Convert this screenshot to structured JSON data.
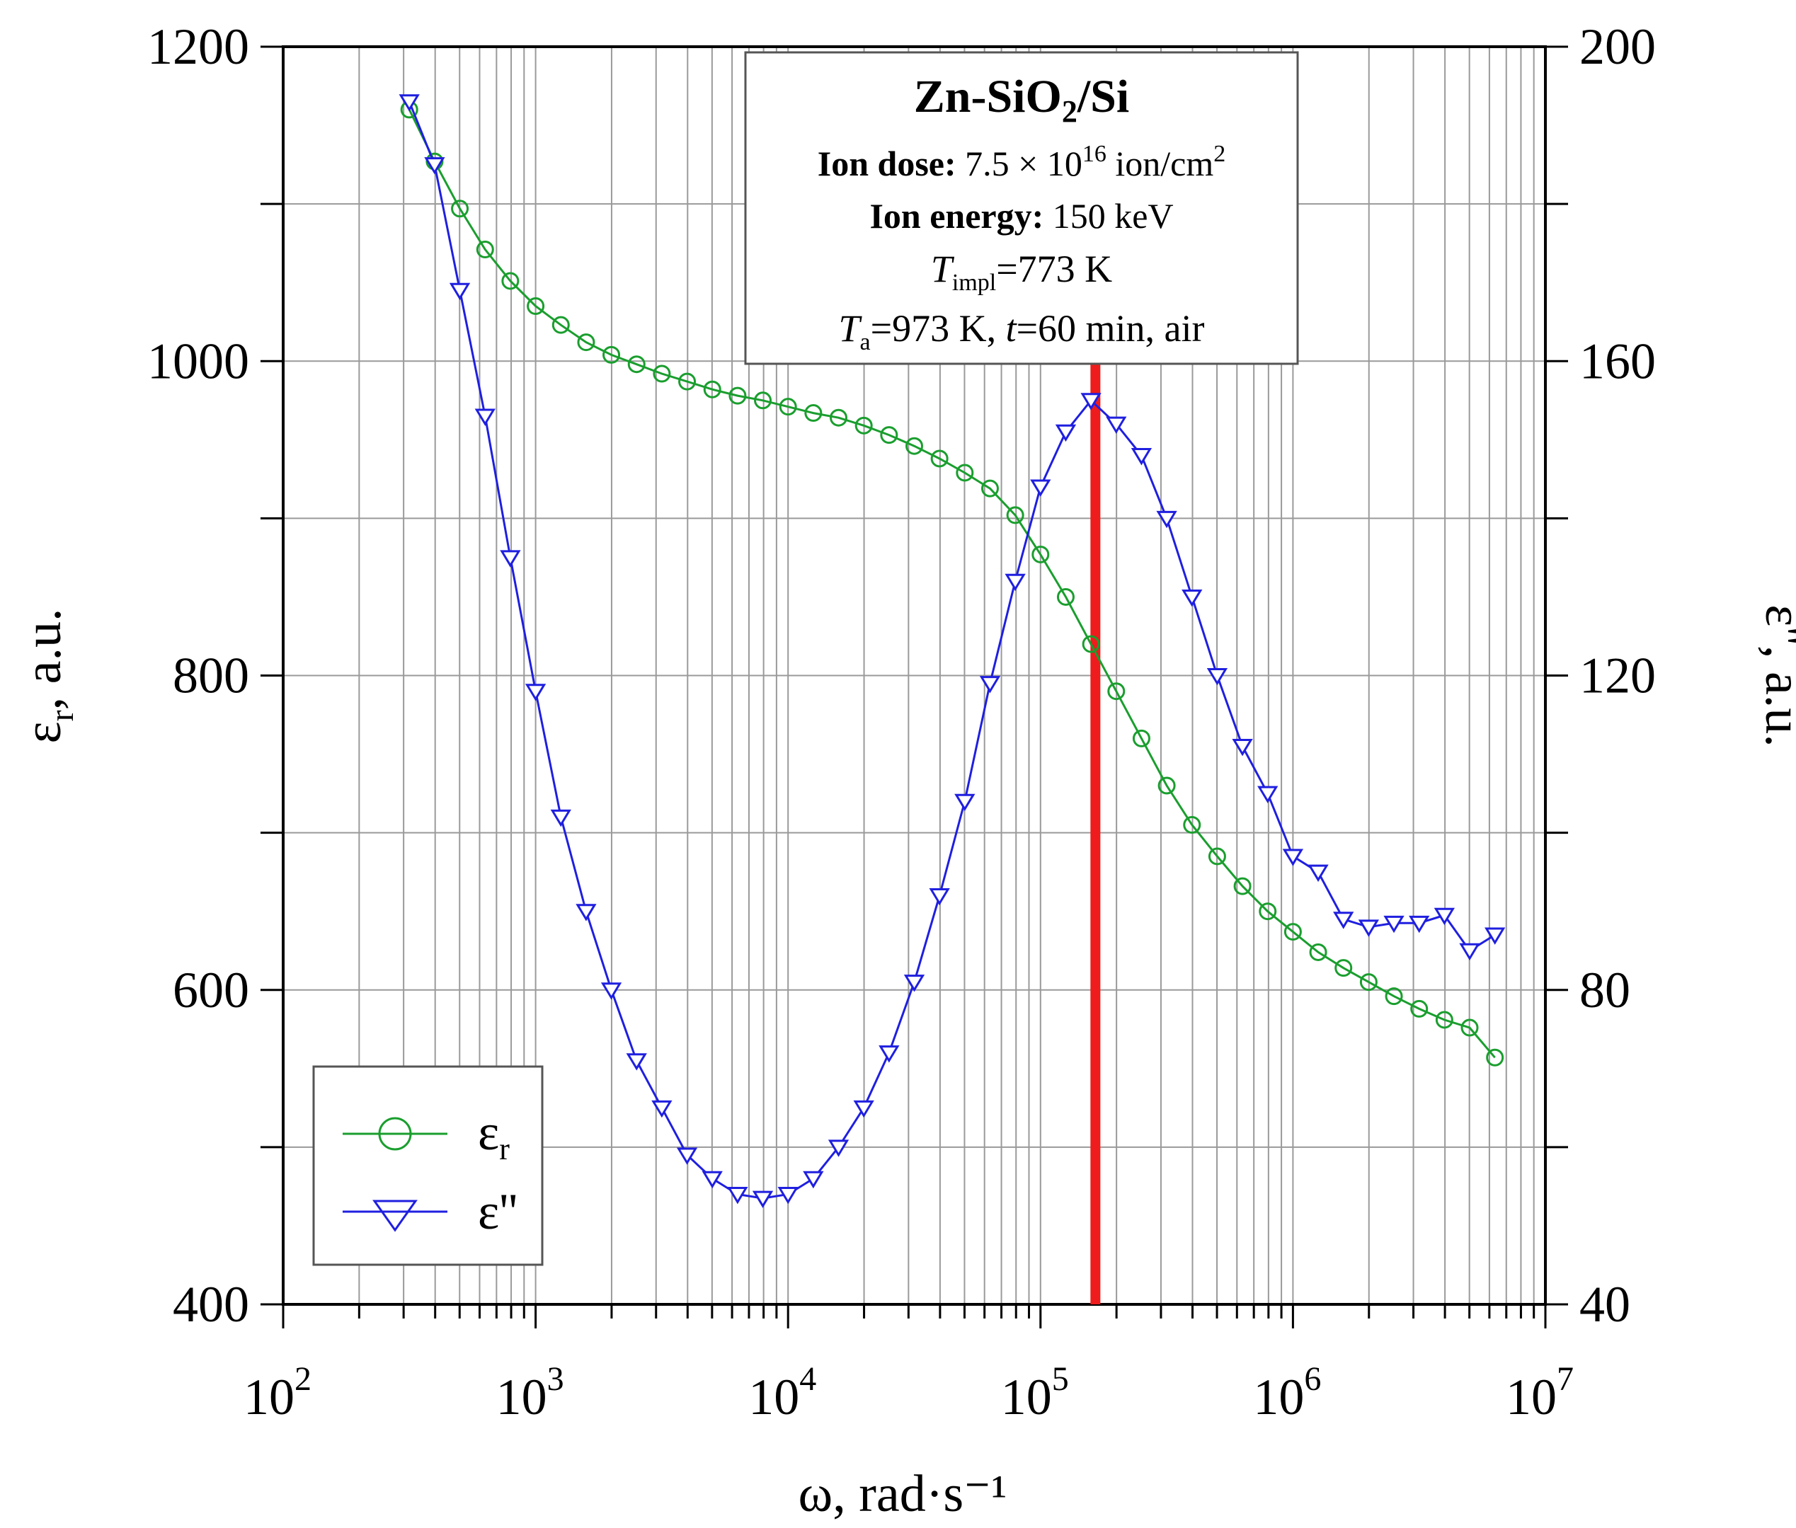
{
  "chart_data": {
    "type": "line",
    "x_scale": "log",
    "xlim_exp": [
      2,
      7
    ],
    "xlabel": "ω, rad·s⁻¹",
    "ylabel_left": "ε",
    "ylabel_left_sub": "r",
    "ylabel_left_rest": ", a.u.",
    "ylabel_right": "ε'', a.u.",
    "ylim_left": [
      400,
      1200
    ],
    "ylim_right": [
      40,
      200
    ],
    "yticks_left": [
      "400",
      "600",
      "800",
      "1000",
      "1200"
    ],
    "yticks_right": [
      "40",
      "80",
      "120",
      "160",
      "200"
    ],
    "xtick_base": "10",
    "xtick_exps": [
      "2",
      "3",
      "4",
      "5",
      "6",
      "7"
    ],
    "grid": true,
    "vertical_marker_x": 165000,
    "colors": {
      "er": "#1a9e2e",
      "eim": "#1f1fe0",
      "marker": "#ee1c1c"
    },
    "x": [
      316,
      398,
      501,
      631,
      794,
      1000,
      1259,
      1585,
      1995,
      2512,
      3162,
      3981,
      5012,
      6310,
      7943,
      10000,
      12589,
      15849,
      19953,
      25119,
      31623,
      39811,
      50119,
      63096,
      79433,
      100000,
      125893,
      158489,
      199526,
      251189,
      316228,
      398107,
      501187,
      630957,
      794328,
      1000000,
      1258925,
      1584893,
      1995262,
      2511886,
      3162278,
      3981072,
      5011872,
      6309573
    ],
    "series": [
      {
        "name": "εr",
        "axis": "left",
        "marker": "circle",
        "values": [
          1160,
          1127,
          1097,
          1071,
          1051,
          1035,
          1023,
          1012,
          1004,
          998,
          992,
          987,
          982,
          978,
          975,
          971,
          967,
          964,
          959,
          953,
          946,
          938,
          929,
          919,
          902,
          877,
          850,
          820,
          790,
          760,
          730,
          705,
          685,
          666,
          650,
          637,
          624,
          614,
          605,
          596,
          588,
          581,
          576,
          557
        ]
      },
      {
        "name": "ε''",
        "axis": "right",
        "marker": "triangle-down",
        "values": [
          193,
          185,
          169,
          153,
          135,
          118,
          102,
          90,
          80,
          71,
          65,
          59,
          56,
          54,
          53.5,
          54,
          56,
          60,
          65,
          72,
          81,
          92,
          104,
          119,
          132,
          144,
          151,
          155,
          152,
          148,
          140,
          130,
          120,
          111,
          105,
          97,
          95,
          89,
          88,
          88.5,
          88.5,
          89.5,
          85,
          87
        ]
      }
    ],
    "legend": [
      {
        "label": "ε",
        "sub": "r"
      },
      {
        "label": "ε''",
        "sub": ""
      }
    ],
    "annotation": {
      "title_main": "Zn-SiO",
      "title_sub": "2",
      "title_end": "/Si",
      "dose_label": "Ion dose:",
      "dose_value": " 7.5 × 10",
      "dose_exp": "16",
      "dose_unit": " ion/cm",
      "dose_unit_exp": "2",
      "energy_label": "Ion energy:",
      "energy_value": " 150 keV",
      "timpl_T": "T",
      "timpl_sub": "impl",
      "timpl_value": "=773 K",
      "ta_T": "T",
      "ta_sub": "a",
      "ta_value": "=973 K, ",
      "ta_t": "t",
      "ta_rest": "=60 min, air"
    }
  }
}
